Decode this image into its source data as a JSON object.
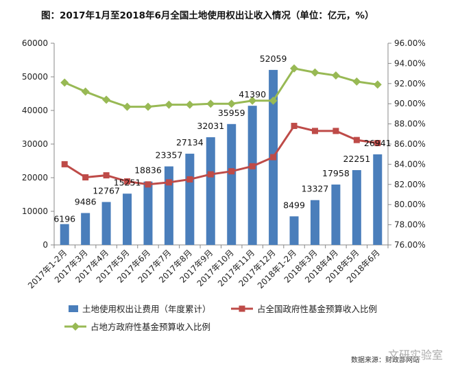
{
  "chart_data": {
    "type": "bar",
    "title": "图：2017年1月至2018年6月全国土地使用权出让收入情况（单位：亿元，%）",
    "categories": [
      "2017年1-2月",
      "2017年3月",
      "2017年4月",
      "2017年5月",
      "2017年6月",
      "2017年7月",
      "2017年8月",
      "2017年9月",
      "2017年10月",
      "2017年11月",
      "2017年12月",
      "2018年1-2月",
      "2018年3月",
      "2018年4月",
      "2018年5月",
      "2018年6月"
    ],
    "left_axis": {
      "min": 0,
      "max": 60000,
      "step": 10000,
      "ticks": [
        "0",
        "10000",
        "20000",
        "30000",
        "40000",
        "50000",
        "60000"
      ]
    },
    "right_axis": {
      "min": 76,
      "max": 96,
      "step": 2,
      "ticks": [
        "76.00%",
        "78.00%",
        "80.00%",
        "82.00%",
        "84.00%",
        "86.00%",
        "88.00%",
        "90.00%",
        "92.00%",
        "94.00%",
        "96.00%"
      ]
    },
    "series": [
      {
        "name": "土地使用权出让费用（年度累计）",
        "type": "bar",
        "axis": "left",
        "color": "#4a7ebb",
        "values": [
          6196,
          9486,
          12767,
          15251,
          18836,
          23357,
          27134,
          32031,
          35959,
          41390,
          52059,
          8499,
          13327,
          17958,
          22251,
          26941
        ],
        "labels": [
          "6196",
          "9486",
          "12767",
          "15251",
          "18836",
          "23357",
          "27134",
          "32031",
          "35959",
          "41390",
          "52059",
          "8499",
          "13327",
          "17958",
          "22251",
          "26941"
        ]
      },
      {
        "name": "占全国政府性基金预算收入比例",
        "type": "line",
        "axis": "right",
        "color": "#be4b48",
        "values": [
          84.0,
          82.7,
          82.9,
          82.3,
          82.0,
          82.2,
          82.5,
          83.0,
          83.3,
          83.8,
          84.7,
          87.8,
          87.3,
          87.3,
          86.4,
          86.1
        ]
      },
      {
        "name": "占地方政府性基金预算收入比例",
        "type": "line",
        "axis": "right",
        "color": "#98b954",
        "values": [
          92.1,
          91.2,
          90.4,
          89.7,
          89.7,
          89.9,
          89.9,
          90.0,
          90.0,
          90.3,
          90.3,
          93.5,
          93.1,
          92.8,
          92.2,
          91.9
        ]
      }
    ],
    "legend": [
      "土地使用权出让费用（年度累计）",
      "占全国政府性基金预算收入比例",
      "占地方政府性基金预算收入比例"
    ]
  },
  "footer": {
    "source": "数据来源：财政部网站",
    "watermark": "文研实验室"
  }
}
